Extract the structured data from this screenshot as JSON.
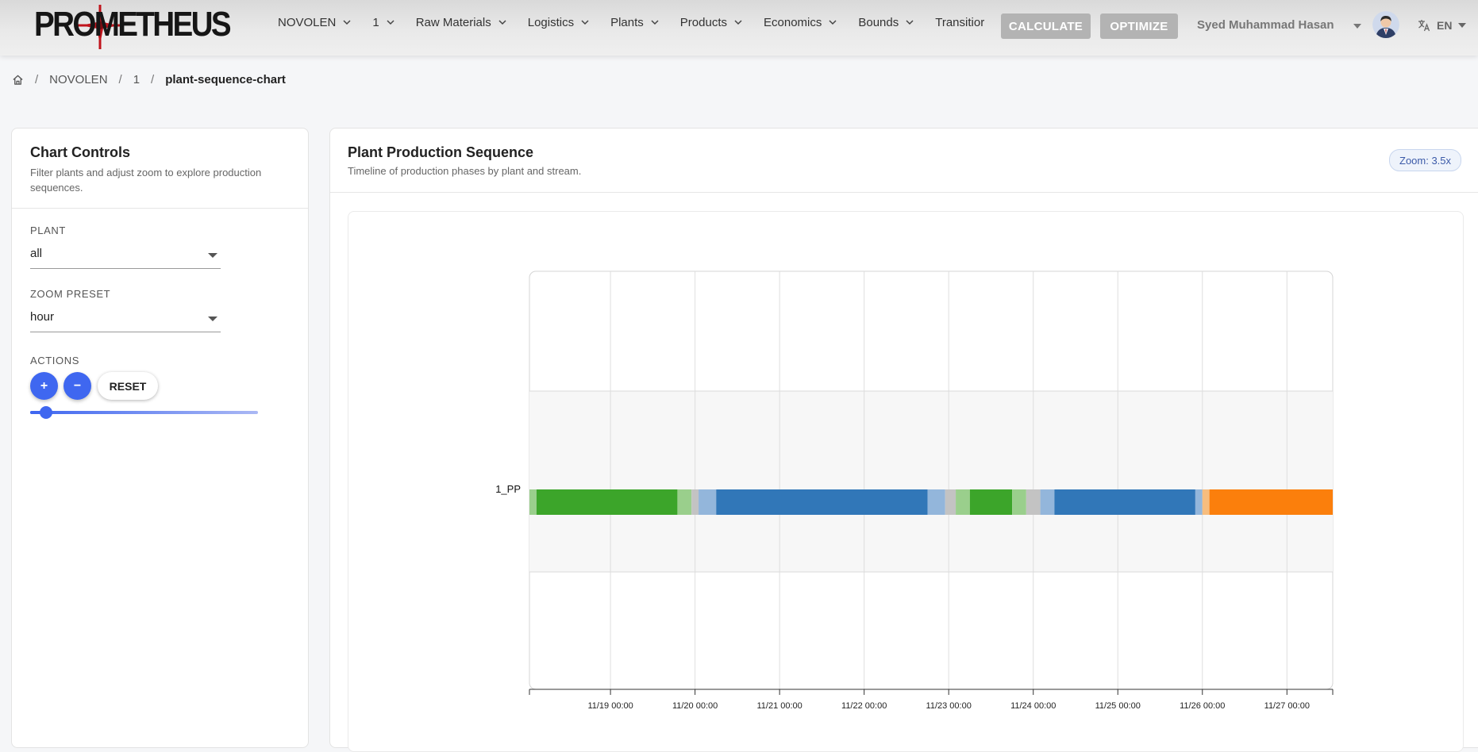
{
  "app": {
    "logo_text": "PROMETHEUS"
  },
  "nav": {
    "items": [
      {
        "label": "NOVOLEN",
        "dropdown": true
      },
      {
        "label": "1",
        "dropdown": true
      },
      {
        "label": "Raw Materials",
        "dropdown": true
      },
      {
        "label": "Logistics",
        "dropdown": true
      },
      {
        "label": "Plants",
        "dropdown": true
      },
      {
        "label": "Products",
        "dropdown": true
      },
      {
        "label": "Economics",
        "dropdown": true
      },
      {
        "label": "Bounds",
        "dropdown": true
      },
      {
        "label": "Transitior",
        "dropdown": false
      }
    ],
    "calculate_label": "CALCULATE",
    "optimize_label": "OPTIMIZE"
  },
  "user": {
    "name": "Syed Muhammad Hasan",
    "language": "EN"
  },
  "breadcrumb": {
    "items": [
      "NOVOLEN",
      "1"
    ],
    "current": "plant-sequence-chart"
  },
  "controls": {
    "title": "Chart Controls",
    "description": "Filter plants and adjust zoom to explore production sequences.",
    "plant_label": "Plant",
    "plant_value": "all",
    "zoom_preset_label": "Zoom Preset",
    "zoom_preset_value": "hour",
    "actions_label": "Actions",
    "zoom_in_label": "+",
    "zoom_out_label": "−",
    "reset_label": "RESET",
    "zoom_slider_fraction": 0.07
  },
  "chart_card": {
    "title": "Plant Production Sequence",
    "description": "Timeline of production phases by plant and stream.",
    "zoom_badge": "Zoom: 3.5x"
  },
  "colors": {
    "green": "#3ca52a",
    "light_green": "#9acf8c",
    "blue": "#3177b8",
    "light_blue": "#93b6db",
    "gray": "#c3c3c3",
    "light_orange": "#f7bd7e",
    "orange": "#fb7f0c"
  },
  "chart_data": {
    "type": "timeline",
    "title": "Plant Production Sequence",
    "x_range": [
      "2024-11-18T01:00",
      "2024-11-27T13:00"
    ],
    "x_ticks": [
      "11/19 00:00",
      "11/20 00:00",
      "11/21 00:00",
      "11/22 00:00",
      "11/23 00:00",
      "11/24 00:00",
      "11/25 00:00",
      "11/26 00:00",
      "11/27 00:00"
    ],
    "rows": [
      {
        "label": "1_PP",
        "segments": [
          {
            "start": "2024-11-18T01:00",
            "end": "2024-11-18T03:00",
            "color": "light_green"
          },
          {
            "start": "2024-11-18T03:00",
            "end": "2024-11-19T19:00",
            "color": "green"
          },
          {
            "start": "2024-11-19T19:00",
            "end": "2024-11-19T23:00",
            "color": "light_green"
          },
          {
            "start": "2024-11-19T23:00",
            "end": "2024-11-20T01:00",
            "color": "gray"
          },
          {
            "start": "2024-11-20T01:00",
            "end": "2024-11-20T06:00",
            "color": "light_blue"
          },
          {
            "start": "2024-11-20T06:00",
            "end": "2024-11-22T18:00",
            "color": "blue"
          },
          {
            "start": "2024-11-22T18:00",
            "end": "2024-11-22T23:00",
            "color": "light_blue"
          },
          {
            "start": "2024-11-22T23:00",
            "end": "2024-11-23T02:00",
            "color": "gray"
          },
          {
            "start": "2024-11-23T02:00",
            "end": "2024-11-23T06:00",
            "color": "light_green"
          },
          {
            "start": "2024-11-23T06:00",
            "end": "2024-11-23T18:00",
            "color": "green"
          },
          {
            "start": "2024-11-23T18:00",
            "end": "2024-11-23T22:00",
            "color": "light_green"
          },
          {
            "start": "2024-11-23T22:00",
            "end": "2024-11-24T02:00",
            "color": "gray"
          },
          {
            "start": "2024-11-24T02:00",
            "end": "2024-11-24T06:00",
            "color": "light_blue"
          },
          {
            "start": "2024-11-24T06:00",
            "end": "2024-11-25T22:00",
            "color": "blue"
          },
          {
            "start": "2024-11-25T22:00",
            "end": "2024-11-26T00:00",
            "color": "light_blue"
          },
          {
            "start": "2024-11-26T00:00",
            "end": "2024-11-26T02:00",
            "color": "light_orange"
          },
          {
            "start": "2024-11-26T02:00",
            "end": "2024-11-27T13:00",
            "color": "orange"
          }
        ]
      }
    ]
  }
}
